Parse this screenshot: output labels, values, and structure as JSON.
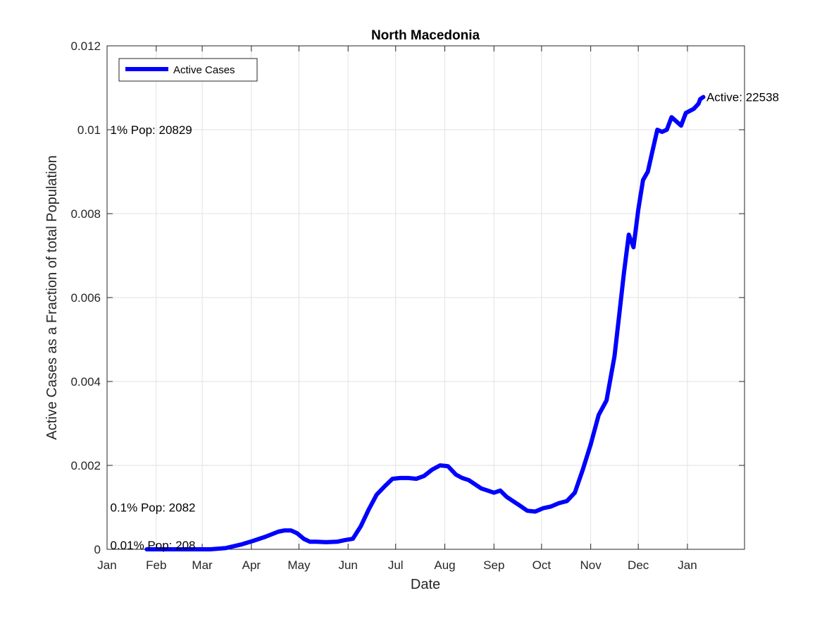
{
  "chart_data": {
    "type": "line",
    "title": "North Macedonia",
    "xlabel": "Date",
    "ylabel": "Active Cases as a Fraction of total Population",
    "x_ticks": [
      "Jan",
      "Feb",
      "Mar",
      "Apr",
      "May",
      "Jun",
      "Jul",
      "Aug",
      "Sep",
      "Oct",
      "Nov",
      "Dec",
      "Jan"
    ],
    "y_ticks": [
      "0",
      "0.002",
      "0.004",
      "0.006",
      "0.008",
      "0.01",
      "0.012"
    ],
    "xlim": [
      0,
      402
    ],
    "ylim": [
      0,
      0.012
    ],
    "grid": true,
    "legend": {
      "position": "top-left",
      "entries": [
        "Active Cases"
      ]
    },
    "series_color": "#0000ff",
    "series": [
      {
        "name": "Active Cases",
        "x": [
          25,
          35,
          45,
          55,
          65,
          75,
          85,
          92,
          100,
          108,
          112,
          116,
          120,
          124,
          128,
          132,
          138,
          145,
          150,
          155,
          160,
          165,
          170,
          175,
          180,
          185,
          190,
          195,
          200,
          205,
          210,
          215,
          220,
          224,
          228,
          232,
          236,
          240,
          244,
          248,
          252,
          256,
          260,
          265,
          270,
          275,
          280,
          285,
          290,
          295,
          300,
          305,
          310,
          315,
          320,
          323,
          326,
          329,
          332,
          335,
          338,
          341,
          344,
          347,
          350,
          353,
          356,
          359,
          362,
          365,
          370,
          373,
          374,
          376
        ],
        "y": [
          0,
          0,
          0,
          0,
          0,
          3e-05,
          0.00012,
          0.0002,
          0.0003,
          0.00042,
          0.00045,
          0.00045,
          0.00038,
          0.00025,
          0.00018,
          0.00018,
          0.00017,
          0.00018,
          0.00022,
          0.00025,
          0.00055,
          0.00095,
          0.0013,
          0.0015,
          0.00168,
          0.0017,
          0.0017,
          0.00168,
          0.00175,
          0.0019,
          0.002,
          0.00198,
          0.00178,
          0.0017,
          0.00165,
          0.00155,
          0.00145,
          0.0014,
          0.00135,
          0.0014,
          0.00125,
          0.00115,
          0.00105,
          0.00092,
          0.0009,
          0.00098,
          0.00102,
          0.0011,
          0.00115,
          0.00135,
          0.0019,
          0.0025,
          0.0032,
          0.00355,
          0.0046,
          0.0056,
          0.0066,
          0.0075,
          0.0072,
          0.0081,
          0.0088,
          0.009,
          0.0095,
          0.01,
          0.00995,
          0.01,
          0.0103,
          0.0102,
          0.0101,
          0.0104,
          0.0105,
          0.01062,
          0.01073,
          0.01078
        ]
      }
    ],
    "annotations": [
      {
        "text": "1% Pop: 20829",
        "x": 2,
        "y": 0.01
      },
      {
        "text": "0.1% Pop: 2082",
        "x": 2,
        "y": 0.001
      },
      {
        "text": "0.01% Pop: 208",
        "x": 2,
        "y": 0.0001
      },
      {
        "text": "Active: 22538",
        "x": 378,
        "y": 0.01078
      }
    ]
  }
}
